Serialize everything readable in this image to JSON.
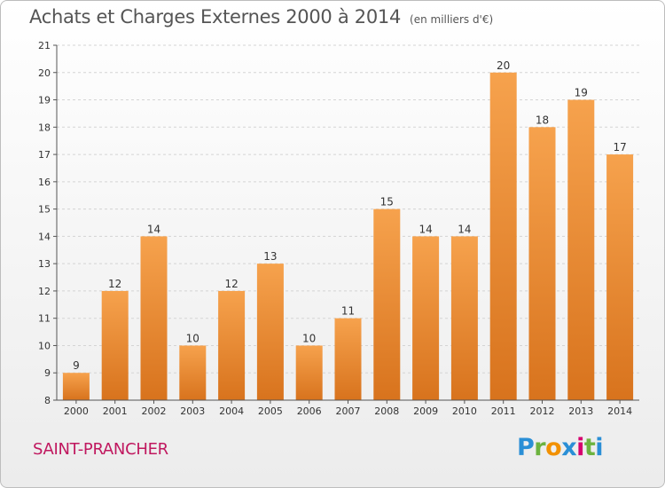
{
  "title": "Achats et Charges Externes 2000 à 2014",
  "subtitle": "(en milliers d'€)",
  "town": "SAINT-PRANCHER",
  "logo": {
    "text": "Proxiti",
    "letter_colors": [
      "#2a8fd6",
      "#6cb33f",
      "#f29100",
      "#2a8fd6",
      "#d6006e",
      "#6cb33f",
      "#2a8fd6"
    ]
  },
  "colors": {
    "bar_light": "#f6a24d",
    "bar_dark": "#d8731d",
    "grid": "#d4d4d4",
    "axis": "#555555",
    "text": "#333333",
    "town": "#c0185f"
  },
  "chart_data": {
    "type": "bar",
    "categories": [
      "2000",
      "2001",
      "2002",
      "2003",
      "2004",
      "2005",
      "2006",
      "2007",
      "2008",
      "2009",
      "2010",
      "2011",
      "2012",
      "2013",
      "2014"
    ],
    "values": [
      9,
      12,
      14,
      10,
      12,
      13,
      10,
      11,
      15,
      14,
      14,
      20,
      18,
      19,
      17
    ],
    "data_labels": [
      "9",
      "12",
      "14",
      "10",
      "12",
      "13",
      "10",
      "11",
      "15",
      "14",
      "14",
      "20",
      "18",
      "19",
      "17"
    ],
    "y_ticks": [
      8,
      9,
      10,
      11,
      12,
      13,
      14,
      15,
      16,
      17,
      18,
      19,
      20,
      21
    ],
    "ylim": [
      8,
      21
    ],
    "xlabel": "",
    "ylabel": "",
    "grid": true
  }
}
